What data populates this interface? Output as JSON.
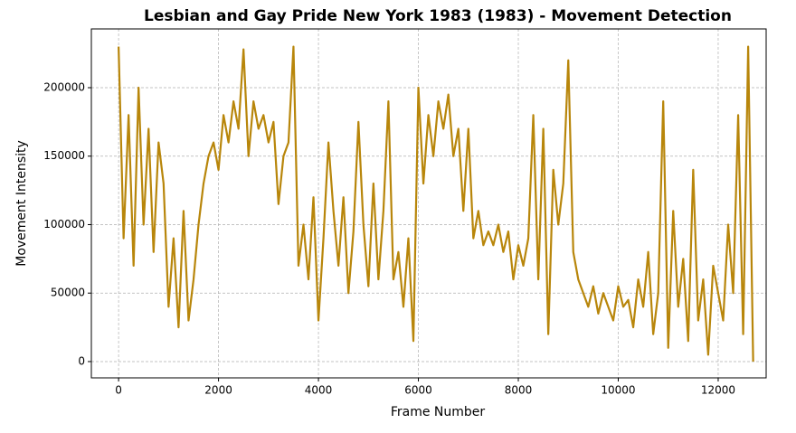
{
  "chart_data": {
    "type": "line",
    "title": "Lesbian and Gay Pride New York 1983 (1983) - Movement Detection",
    "x_label": "Frame Number",
    "y_label": "Movement Intensity",
    "x": [
      0,
      100,
      200,
      300,
      400,
      500,
      600,
      700,
      800,
      900,
      1000,
      1100,
      1200,
      1300,
      1400,
      1500,
      1600,
      1700,
      1800,
      1900,
      2000,
      2100,
      2200,
      2300,
      2400,
      2500,
      2600,
      2700,
      2800,
      2900,
      3000,
      3100,
      3200,
      3300,
      3400,
      3500,
      3600,
      3700,
      3800,
      3900,
      4000,
      4100,
      4200,
      4300,
      4400,
      4500,
      4600,
      4700,
      4800,
      4900,
      5000,
      5100,
      5200,
      5300,
      5400,
      5500,
      5600,
      5700,
      5800,
      5900,
      6000,
      6100,
      6200,
      6300,
      6400,
      6500,
      6600,
      6700,
      6800,
      6900,
      7000,
      7100,
      7200,
      7300,
      7400,
      7500,
      7600,
      7700,
      7800,
      7900,
      8000,
      8100,
      8200,
      8300,
      8400,
      8500,
      8600,
      8700,
      8800,
      8900,
      9000,
      9100,
      9200,
      9300,
      9400,
      9500,
      9600,
      9700,
      9800,
      9900,
      10000,
      10100,
      10200,
      10300,
      10400,
      10500,
      10600,
      10700,
      10800,
      10900,
      11000,
      11100,
      11200,
      11300,
      11400,
      11500,
      11600,
      11700,
      11800,
      11900,
      12000,
      12100,
      12200,
      12300,
      12400,
      12500,
      12600,
      12700
    ],
    "series": [
      {
        "color": "#b8860b",
        "values": [
          230000,
          90000,
          180000,
          70000,
          200000,
          100000,
          170000,
          80000,
          160000,
          130000,
          40000,
          90000,
          25000,
          110000,
          30000,
          60000,
          100000,
          130000,
          150000,
          160000,
          140000,
          180000,
          160000,
          190000,
          170000,
          228000,
          150000,
          190000,
          170000,
          180000,
          160000,
          175000,
          115000,
          150000,
          160000,
          230000,
          70000,
          100000,
          60000,
          120000,
          30000,
          90000,
          160000,
          110000,
          70000,
          120000,
          50000,
          95000,
          175000,
          100000,
          55000,
          130000,
          60000,
          110000,
          190000,
          60000,
          80000,
          40000,
          90000,
          15000,
          200000,
          130000,
          180000,
          150000,
          190000,
          170000,
          195000,
          150000,
          170000,
          110000,
          170000,
          90000,
          110000,
          85000,
          95000,
          85000,
          100000,
          80000,
          95000,
          60000,
          85000,
          70000,
          90000,
          180000,
          60000,
          170000,
          20000,
          140000,
          100000,
          130000,
          220000,
          80000,
          60000,
          50000,
          40000,
          55000,
          35000,
          50000,
          40000,
          30000,
          55000,
          40000,
          45000,
          25000,
          60000,
          40000,
          80000,
          20000,
          50000,
          190000,
          10000,
          110000,
          40000,
          75000,
          15000,
          140000,
          30000,
          60000,
          5000,
          70000,
          50000,
          30000,
          100000,
          50000,
          180000,
          20000,
          230000,
          0
        ]
      }
    ],
    "xlim": [
      -545,
      12960
    ],
    "ylim": [
      -11900,
      242900
    ],
    "xticks": [
      0,
      2000,
      4000,
      6000,
      8000,
      10000,
      12000
    ],
    "yticks": [
      0,
      50000,
      100000,
      150000,
      200000
    ],
    "grid": true
  }
}
